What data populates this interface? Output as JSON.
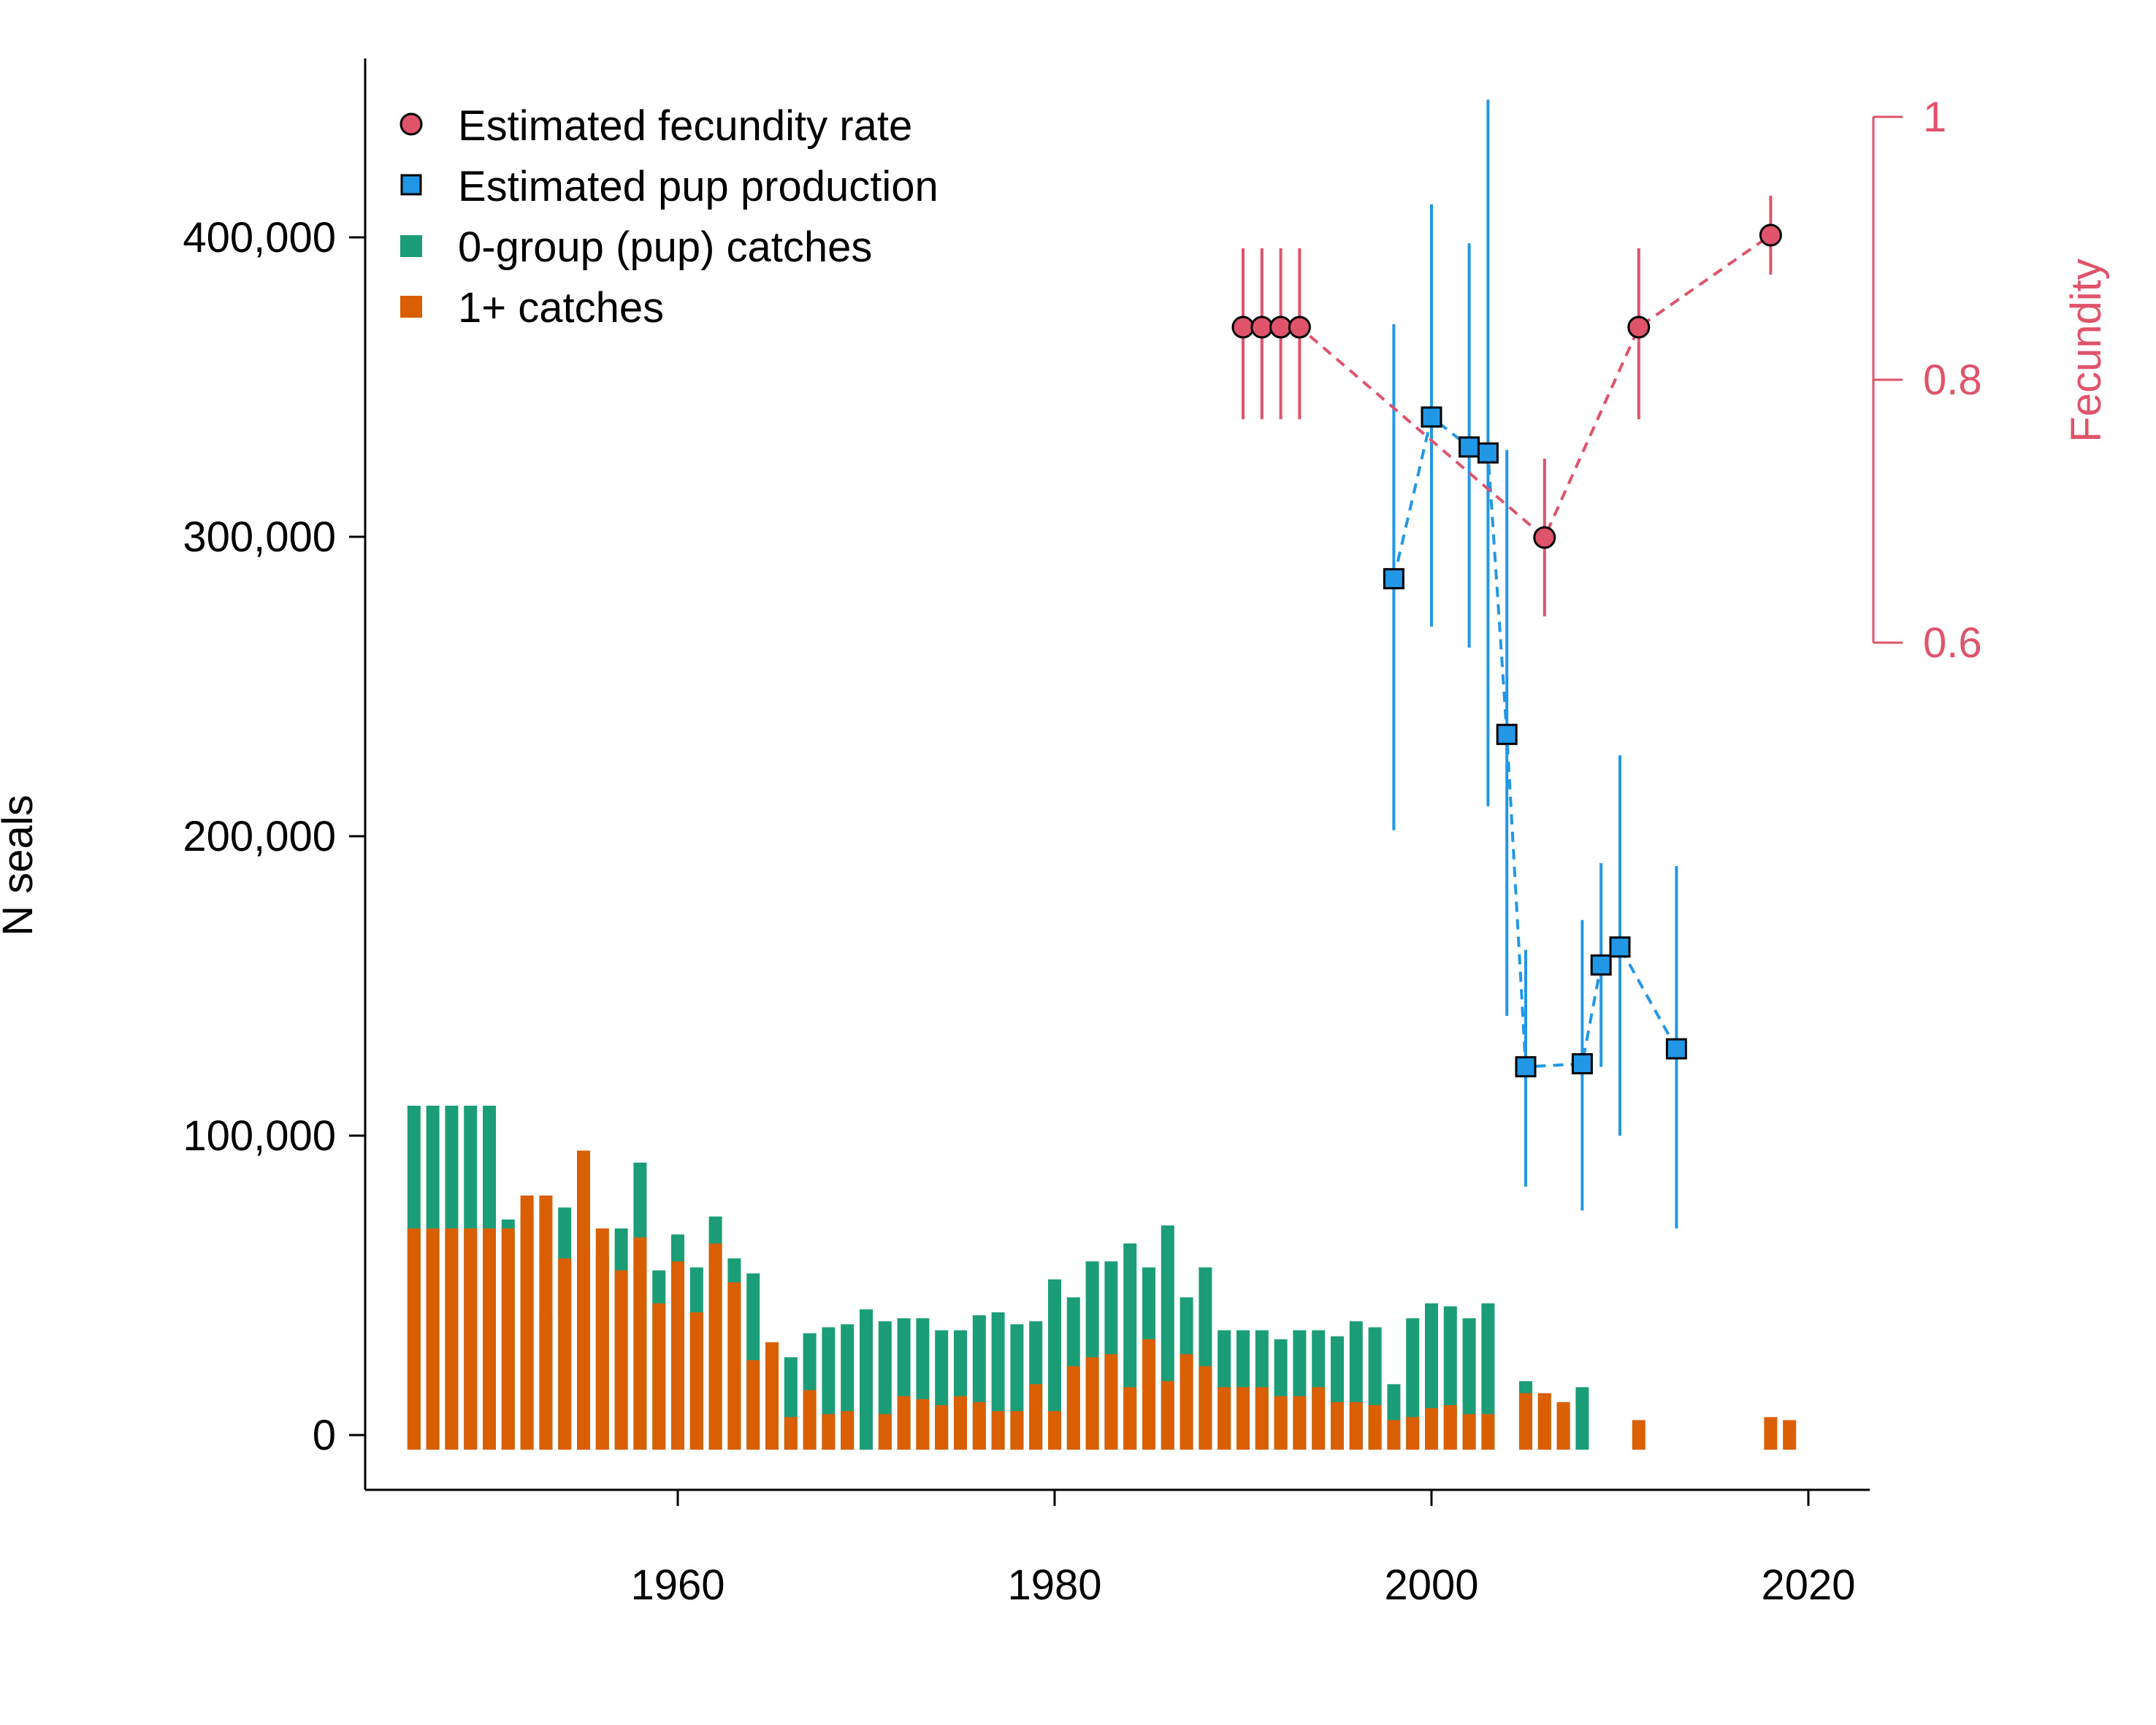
{
  "chart_data": {
    "type": "bar",
    "xlim": [
      1945,
      2023
    ],
    "xticks": [
      1960,
      1980,
      2000,
      2020
    ],
    "ylabel": "N seals",
    "ylim": [
      0,
      450000
    ],
    "yticks": [
      0,
      100000,
      200000,
      300000,
      400000
    ],
    "ytick_labels": [
      "0",
      "100,000",
      "200,000",
      "300,000",
      "400,000"
    ],
    "y2label": "Fecundity",
    "y2_range": [
      0.6,
      1.0
    ],
    "y2ticks": [
      0.6,
      0.8,
      1.0
    ],
    "y2tick_labels": [
      "0.6",
      "0.8",
      "1"
    ],
    "grid": false,
    "legend_position": "top-left",
    "colors": {
      "fecundity": "#DF536B",
      "pup_production": "#2297E6",
      "pup_catches": "#1B9E77",
      "adult_catches": "#D95F02"
    },
    "legend": [
      {
        "label": "Estimated fecundity rate",
        "marker": "circle",
        "color": "#DF536B"
      },
      {
        "label": "Estimated pup production",
        "marker": "square",
        "color": "#2297E6"
      },
      {
        "label": "0-group (pup) catches",
        "marker": "bar",
        "color": "#1B9E77"
      },
      {
        "label": "1+ catches",
        "marker": "bar",
        "color": "#D95F02"
      }
    ],
    "series": [
      {
        "name": "0-group (pup) catches",
        "kind": "bar",
        "x": [
          1946,
          1947,
          1948,
          1949,
          1950,
          1951,
          1952,
          1953,
          1954,
          1955,
          1956,
          1957,
          1958,
          1959,
          1960,
          1961,
          1962,
          1963,
          1964,
          1965,
          1966,
          1967,
          1968,
          1969,
          1970,
          1971,
          1972,
          1973,
          1974,
          1975,
          1976,
          1977,
          1978,
          1979,
          1980,
          1981,
          1982,
          1983,
          1984,
          1985,
          1986,
          1987,
          1988,
          1989,
          1990,
          1991,
          1992,
          1993,
          1994,
          1995,
          1996,
          1997,
          1998,
          1999,
          2000,
          2001,
          2002,
          2003,
          2004,
          2005,
          2006,
          2007,
          2008,
          2009,
          2010,
          2011,
          2012,
          2013,
          2014,
          2015,
          2016,
          2017,
          2018,
          2019
        ],
        "values": [
          110000,
          110000,
          110000,
          110000,
          110000,
          72000,
          74000,
          40000,
          76000,
          53000,
          60000,
          69000,
          91000,
          55000,
          67000,
          56000,
          73000,
          59000,
          54000,
          29000,
          26000,
          34000,
          36000,
          37000,
          42000,
          38000,
          39000,
          39000,
          35000,
          35000,
          40000,
          41000,
          37000,
          38000,
          52000,
          46000,
          58000,
          58000,
          64000,
          56000,
          70000,
          46000,
          56000,
          35000,
          35000,
          35000,
          32000,
          35000,
          35000,
          33000,
          38000,
          36000,
          17000,
          39000,
          44000,
          43000,
          39000,
          44000,
          0,
          18000,
          12000,
          11000,
          16000,
          0,
          0,
          0,
          0,
          0,
          0,
          0,
          0,
          0,
          0,
          0
        ]
      },
      {
        "name": "1+ catches",
        "kind": "bar",
        "x": [
          1946,
          1947,
          1948,
          1949,
          1950,
          1951,
          1952,
          1953,
          1954,
          1955,
          1956,
          1957,
          1958,
          1959,
          1960,
          1961,
          1962,
          1963,
          1964,
          1965,
          1966,
          1967,
          1968,
          1969,
          1970,
          1971,
          1972,
          1973,
          1974,
          1975,
          1976,
          1977,
          1978,
          1979,
          1980,
          1981,
          1982,
          1983,
          1984,
          1985,
          1986,
          1987,
          1988,
          1989,
          1990,
          1991,
          1992,
          1993,
          1994,
          1995,
          1996,
          1997,
          1998,
          1999,
          2000,
          2001,
          2002,
          2003,
          2004,
          2005,
          2006,
          2007,
          2008,
          2009,
          2010,
          2011,
          2012,
          2013,
          2014,
          2015,
          2016,
          2017,
          2018,
          2019
        ],
        "values": [
          69000,
          69000,
          69000,
          69000,
          69000,
          69000,
          80000,
          80000,
          59000,
          95000,
          69000,
          55000,
          66000,
          44000,
          58000,
          41000,
          64000,
          51000,
          25000,
          31000,
          6000,
          15000,
          7000,
          8000,
          0,
          7000,
          13000,
          12000,
          10000,
          13000,
          11000,
          8000,
          8000,
          17000,
          8000,
          23000,
          26000,
          27000,
          16000,
          32000,
          18000,
          27000,
          23000,
          16000,
          16000,
          16000,
          13000,
          13000,
          16000,
          11000,
          11000,
          10000,
          5000,
          6000,
          9000,
          10000,
          7000,
          7000,
          0,
          14000,
          14000,
          11000,
          0,
          0,
          0,
          5000,
          0,
          0,
          0,
          0,
          0,
          0,
          6000,
          5000
        ]
      },
      {
        "name": "Estimated pup production",
        "kind": "points_with_errorbars",
        "x": [
          1998,
          2000,
          2002,
          2003,
          2004,
          2005,
          2008,
          2009,
          2010,
          2013
        ],
        "values": [
          286000,
          340000,
          330000,
          328000,
          234000,
          123000,
          124000,
          157000,
          163000,
          129000
        ],
        "lower": [
          202000,
          270000,
          263000,
          210000,
          140000,
          83000,
          75000,
          123000,
          100000,
          69000
        ],
        "upper": [
          371000,
          411000,
          398000,
          446000,
          329000,
          162000,
          172000,
          191000,
          227000,
          190000
        ]
      },
      {
        "name": "Estimated fecundity rate",
        "kind": "points_with_errorbars",
        "axis": "y2",
        "x": [
          1990,
          1991,
          1992,
          1993,
          2006,
          2011,
          2018
        ],
        "values": [
          0.84,
          0.84,
          0.84,
          0.84,
          0.68,
          0.84,
          0.91
        ],
        "lower": [
          0.77,
          0.77,
          0.77,
          0.77,
          0.62,
          0.77,
          0.88
        ],
        "upper": [
          0.9,
          0.9,
          0.9,
          0.9,
          0.74,
          0.9,
          0.94
        ]
      }
    ]
  }
}
